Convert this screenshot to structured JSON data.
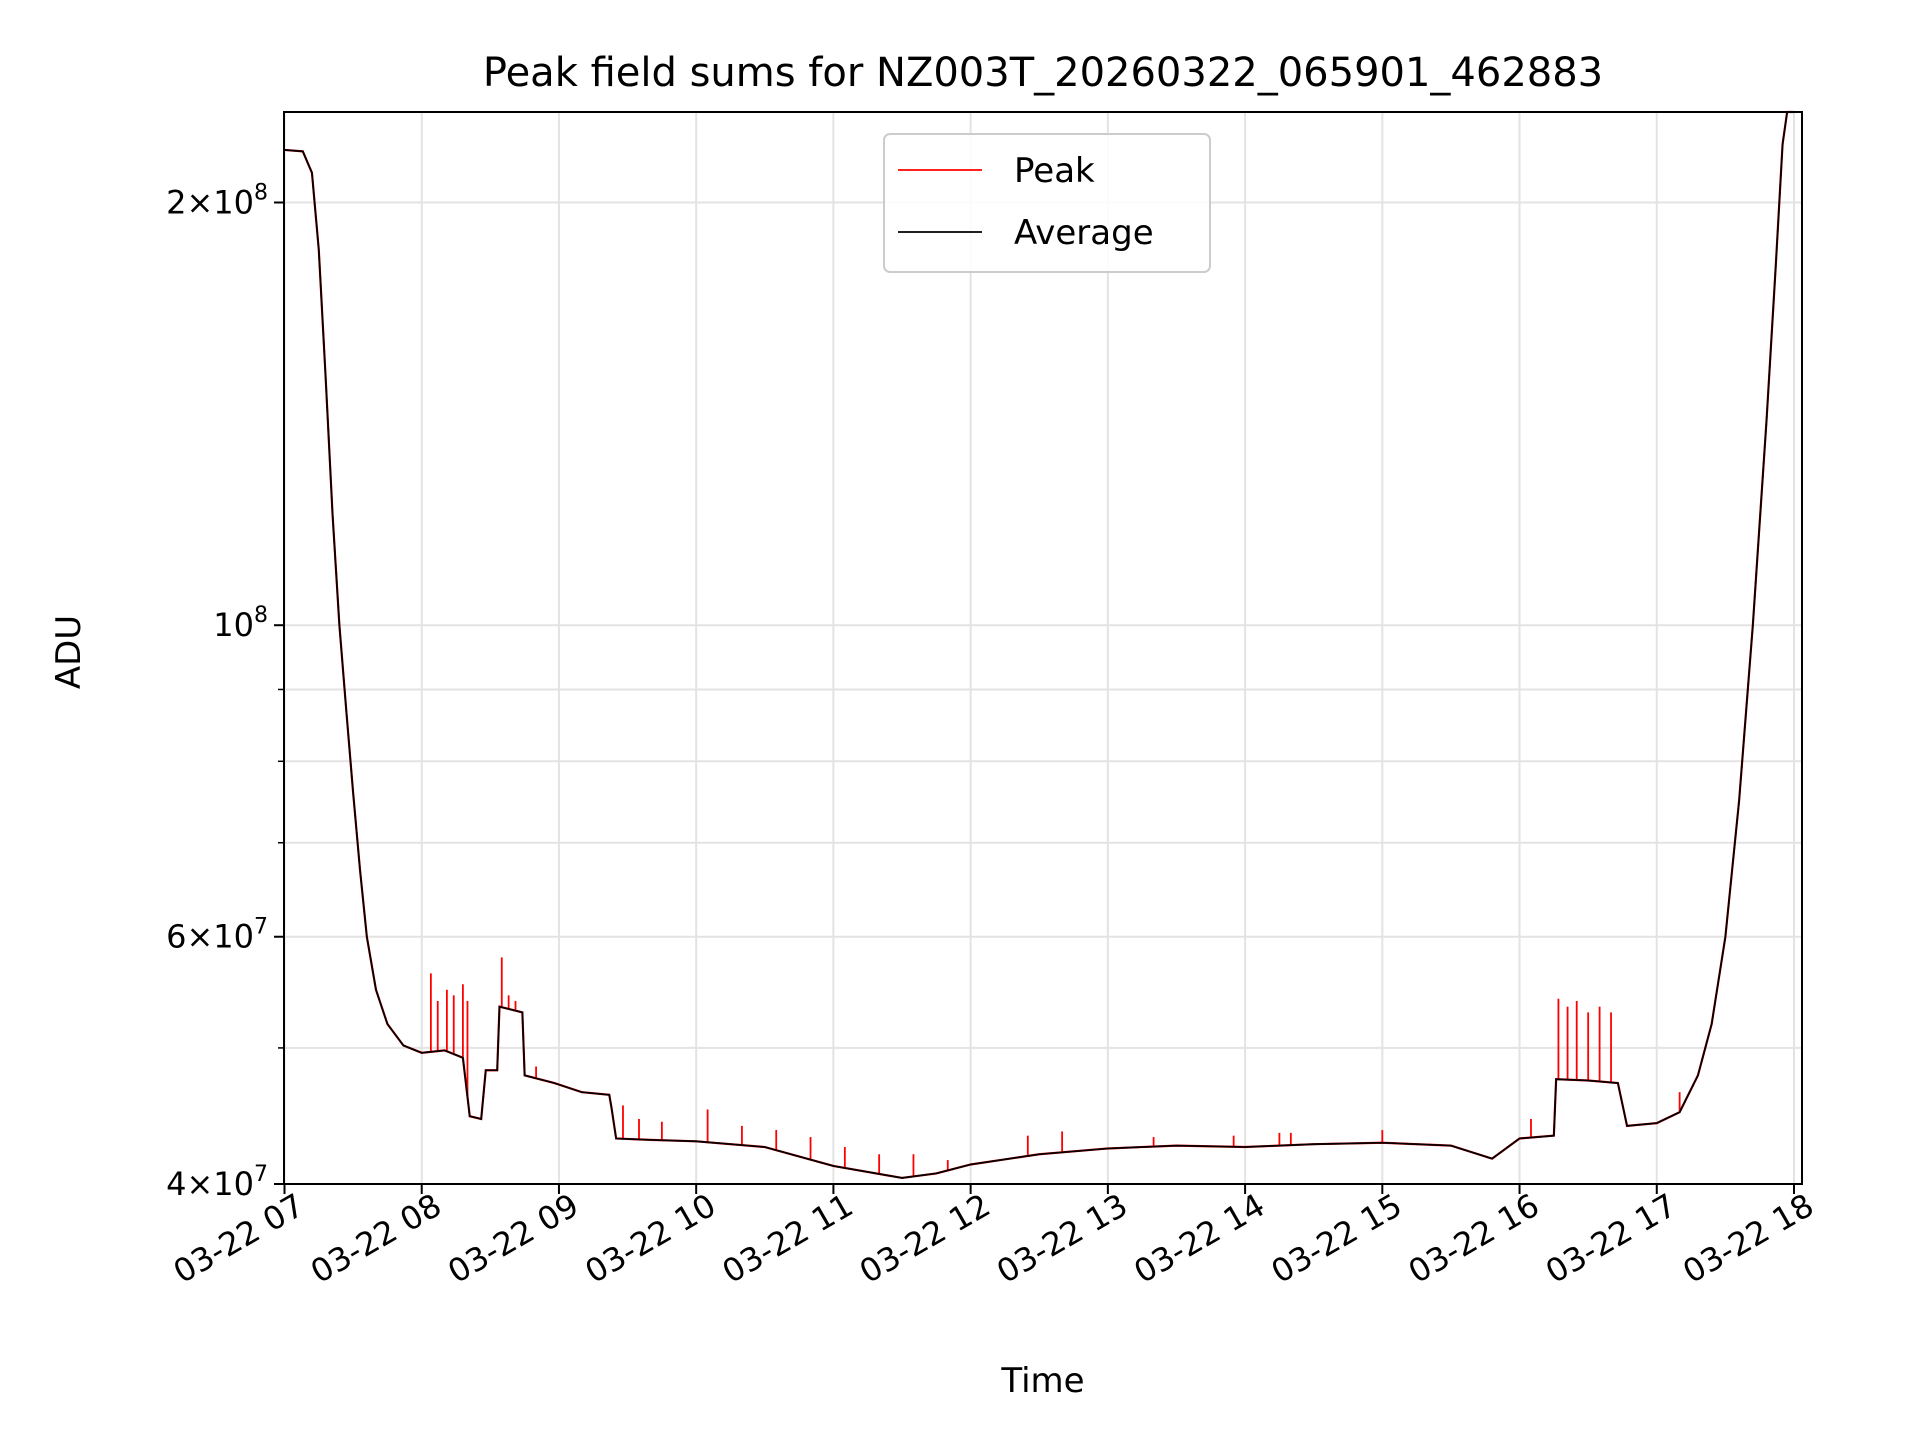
{
  "chart_data": {
    "type": "line",
    "title": "Peak field sums for NZ003T_20260322_065901_462883",
    "xlabel": "Time",
    "ylabel": "ADU",
    "y_scale": "log",
    "ylim": [
      40000000,
      232000000
    ],
    "xlim": [
      "2026-03-22 07:00",
      "2026-03-22 18:00"
    ],
    "grid": true,
    "legend_position": "top-center",
    "x_ticks": [
      {
        "t": "2026-03-22 07:00",
        "label": "03-22 07"
      },
      {
        "t": "2026-03-22 08:00",
        "label": "03-22 08"
      },
      {
        "t": "2026-03-22 09:00",
        "label": "03-22 09"
      },
      {
        "t": "2026-03-22 10:00",
        "label": "03-22 10"
      },
      {
        "t": "2026-03-22 11:00",
        "label": "03-22 11"
      },
      {
        "t": "2026-03-22 12:00",
        "label": "03-22 12"
      },
      {
        "t": "2026-03-22 13:00",
        "label": "03-22 13"
      },
      {
        "t": "2026-03-22 14:00",
        "label": "03-22 14"
      },
      {
        "t": "2026-03-22 15:00",
        "label": "03-22 15"
      },
      {
        "t": "2026-03-22 16:00",
        "label": "03-22 16"
      },
      {
        "t": "2026-03-22 17:00",
        "label": "03-22 17"
      },
      {
        "t": "2026-03-22 18:00",
        "label": "03-22 18"
      }
    ],
    "y_ticks": [
      {
        "v": 40000000,
        "base": "4",
        "exp": "7"
      },
      {
        "v": 60000000,
        "base": "6",
        "exp": "7"
      },
      {
        "v": 100000000,
        "base": "",
        "exp": "8"
      },
      {
        "v": 200000000,
        "base": "2",
        "exp": "8"
      }
    ],
    "y_minor_grid": [
      50000000,
      70000000,
      80000000,
      90000000
    ],
    "series": [
      {
        "name": "Average",
        "color": "#000000",
        "points": [
          [
            "2026-03-22 07:00",
            218000000
          ],
          [
            "2026-03-22 07:08",
            217500000
          ],
          [
            "2026-03-22 07:12",
            210000000
          ],
          [
            "2026-03-22 07:15",
            185000000
          ],
          [
            "2026-03-22 07:18",
            150000000
          ],
          [
            "2026-03-22 07:21",
            120000000
          ],
          [
            "2026-03-22 07:24",
            100000000
          ],
          [
            "2026-03-22 07:27",
            87000000
          ],
          [
            "2026-03-22 07:30",
            76000000
          ],
          [
            "2026-03-22 07:33",
            67000000
          ],
          [
            "2026-03-22 07:36",
            60000000
          ],
          [
            "2026-03-22 07:40",
            55000000
          ],
          [
            "2026-03-22 07:45",
            52000000
          ],
          [
            "2026-03-22 07:52",
            50200000
          ],
          [
            "2026-03-22 08:00",
            49600000
          ],
          [
            "2026-03-22 08:10",
            49800000
          ],
          [
            "2026-03-22 08:18",
            49200000
          ],
          [
            "2026-03-22 08:21",
            44700000
          ],
          [
            "2026-03-22 08:26",
            44500000
          ],
          [
            "2026-03-22 08:28",
            48200000
          ],
          [
            "2026-03-22 08:33",
            48200000
          ],
          [
            "2026-03-22 08:34",
            53500000
          ],
          [
            "2026-03-22 08:44",
            53000000
          ],
          [
            "2026-03-22 08:45",
            47800000
          ],
          [
            "2026-03-22 08:58",
            47200000
          ],
          [
            "2026-03-22 09:10",
            46500000
          ],
          [
            "2026-03-22 09:22",
            46300000
          ],
          [
            "2026-03-22 09:23",
            45300000
          ],
          [
            "2026-03-22 09:25",
            43100000
          ],
          [
            "2026-03-22 09:40",
            43000000
          ],
          [
            "2026-03-22 10:00",
            42900000
          ],
          [
            "2026-03-22 10:30",
            42500000
          ],
          [
            "2026-03-22 11:00",
            41200000
          ],
          [
            "2026-03-22 11:30",
            40400000
          ],
          [
            "2026-03-22 11:45",
            40700000
          ],
          [
            "2026-03-22 12:00",
            41300000
          ],
          [
            "2026-03-22 12:30",
            42000000
          ],
          [
            "2026-03-22 13:00",
            42400000
          ],
          [
            "2026-03-22 13:30",
            42600000
          ],
          [
            "2026-03-22 14:00",
            42500000
          ],
          [
            "2026-03-22 14:30",
            42700000
          ],
          [
            "2026-03-22 15:00",
            42800000
          ],
          [
            "2026-03-22 15:30",
            42600000
          ],
          [
            "2026-03-22 15:48",
            41700000
          ],
          [
            "2026-03-22 16:00",
            43100000
          ],
          [
            "2026-03-22 16:15",
            43300000
          ],
          [
            "2026-03-22 16:16",
            47500000
          ],
          [
            "2026-03-22 16:30",
            47400000
          ],
          [
            "2026-03-22 16:43",
            47200000
          ],
          [
            "2026-03-22 16:47",
            44000000
          ],
          [
            "2026-03-22 17:00",
            44200000
          ],
          [
            "2026-03-22 17:10",
            45000000
          ],
          [
            "2026-03-22 17:18",
            47800000
          ],
          [
            "2026-03-22 17:24",
            52000000
          ],
          [
            "2026-03-22 17:30",
            60000000
          ],
          [
            "2026-03-22 17:36",
            75000000
          ],
          [
            "2026-03-22 17:42",
            100000000
          ],
          [
            "2026-03-22 17:48",
            140000000
          ],
          [
            "2026-03-22 17:52",
            180000000
          ],
          [
            "2026-03-22 17:55",
            220000000
          ],
          [
            "2026-03-22 17:57",
            232000000
          ],
          [
            "2026-03-22 18:00",
            232000000
          ]
        ]
      },
      {
        "name": "Peak",
        "color": "#ff0000",
        "spikes": [
          [
            "2026-03-22 08:04",
            56500000
          ],
          [
            "2026-03-22 08:07",
            54000000
          ],
          [
            "2026-03-22 08:11",
            55000000
          ],
          [
            "2026-03-22 08:14",
            54500000
          ],
          [
            "2026-03-22 08:18",
            55500000
          ],
          [
            "2026-03-22 08:20",
            54000000
          ],
          [
            "2026-03-22 08:35",
            58000000
          ],
          [
            "2026-03-22 08:38",
            54500000
          ],
          [
            "2026-03-22 08:41",
            54000000
          ],
          [
            "2026-03-22 08:50",
            48500000
          ],
          [
            "2026-03-22 09:28",
            45500000
          ],
          [
            "2026-03-22 09:35",
            44500000
          ],
          [
            "2026-03-22 09:45",
            44300000
          ],
          [
            "2026-03-22 10:05",
            45200000
          ],
          [
            "2026-03-22 10:20",
            44000000
          ],
          [
            "2026-03-22 10:35",
            43700000
          ],
          [
            "2026-03-22 10:50",
            43200000
          ],
          [
            "2026-03-22 11:05",
            42500000
          ],
          [
            "2026-03-22 11:20",
            42000000
          ],
          [
            "2026-03-22 11:35",
            42000000
          ],
          [
            "2026-03-22 11:50",
            41600000
          ],
          [
            "2026-03-22 12:25",
            43300000
          ],
          [
            "2026-03-22 12:40",
            43600000
          ],
          [
            "2026-03-22 13:20",
            43200000
          ],
          [
            "2026-03-22 13:55",
            43300000
          ],
          [
            "2026-03-22 14:15",
            43500000
          ],
          [
            "2026-03-22 14:20",
            43500000
          ],
          [
            "2026-03-22 15:00",
            43700000
          ],
          [
            "2026-03-22 16:05",
            44500000
          ],
          [
            "2026-03-22 16:17",
            54200000
          ],
          [
            "2026-03-22 16:21",
            53500000
          ],
          [
            "2026-03-22 16:25",
            54000000
          ],
          [
            "2026-03-22 16:30",
            53000000
          ],
          [
            "2026-03-22 16:35",
            53500000
          ],
          [
            "2026-03-22 16:40",
            53000000
          ],
          [
            "2026-03-22 17:10",
            46500000
          ]
        ]
      }
    ]
  }
}
